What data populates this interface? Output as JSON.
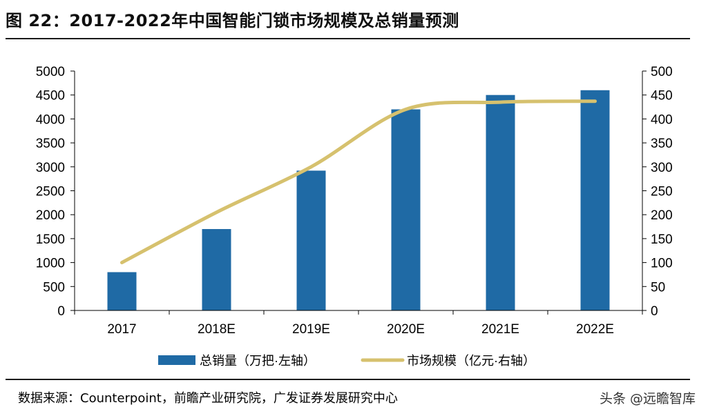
{
  "title": "图 22：2017-2022年中国智能门锁市场规模及总销量预测",
  "source": "数据来源：Counterpoint，前瞻产业研究院，广发证券发展研究中心",
  "watermark": "头条 @远瞻智库",
  "colors": {
    "bar": "#1f6aa5",
    "line": "#d6c16e",
    "axis": "#000000"
  },
  "chart_data": {
    "type": "bar",
    "categories": [
      "2017",
      "2018E",
      "2019E",
      "2020E",
      "2021E",
      "2022E"
    ],
    "series": [
      {
        "name": "总销量（万把·左轴）",
        "type": "bar",
        "axis": "left",
        "values": [
          800,
          1700,
          2920,
          4200,
          4500,
          4600
        ]
      },
      {
        "name": "市场规模（亿元·右轴）",
        "type": "line",
        "axis": "right",
        "values": [
          100,
          205,
          300,
          420,
          435,
          437
        ]
      }
    ],
    "ylim_left": [
      0,
      5000
    ],
    "ylim_right": [
      0,
      500
    ],
    "yticks_left": [
      "0",
      "500",
      "1000",
      "1500",
      "2000",
      "2500",
      "3000",
      "3500",
      "4000",
      "4500",
      "5000"
    ],
    "yticks_right": [
      "0",
      "50",
      "100",
      "150",
      "200",
      "250",
      "300",
      "350",
      "400",
      "450",
      "500"
    ],
    "legend_position": "bottom",
    "grid": false
  }
}
